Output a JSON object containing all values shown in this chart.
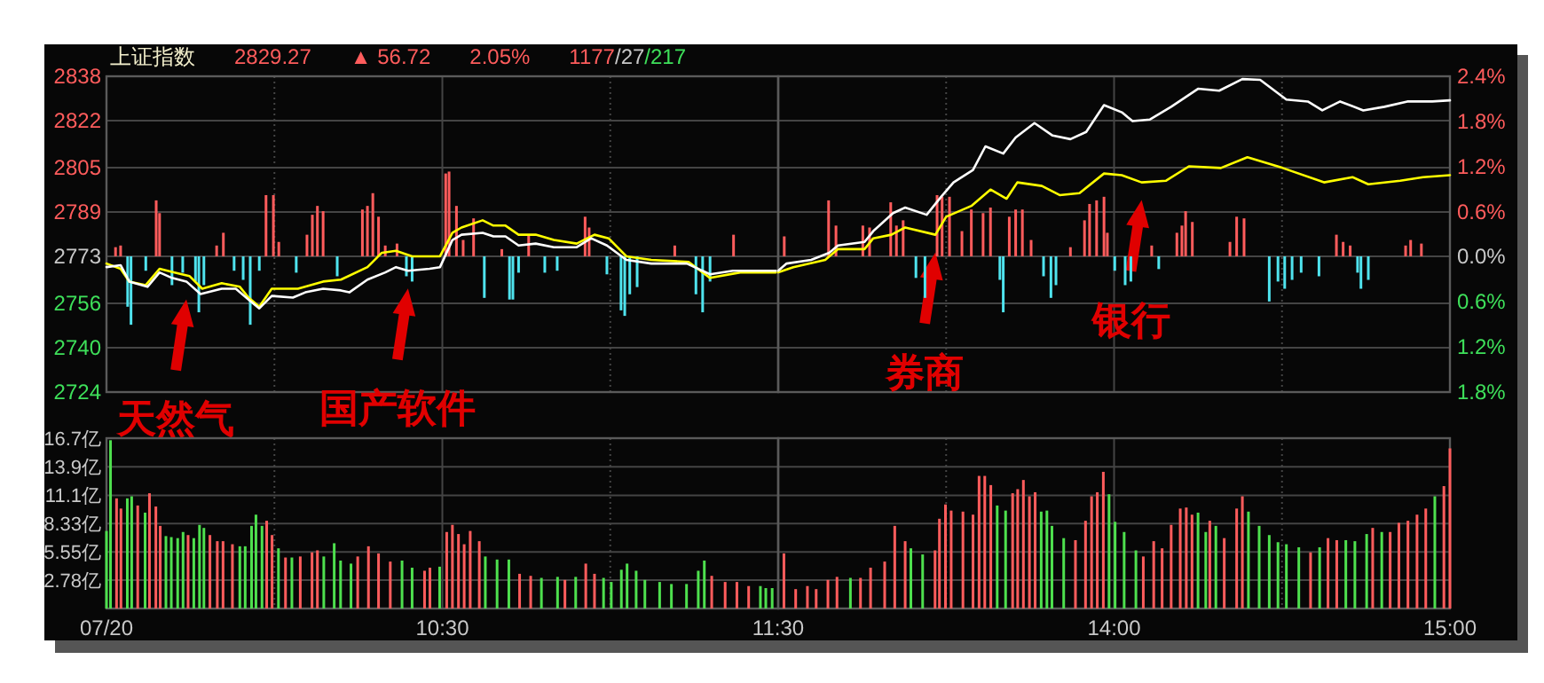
{
  "chart_data": [
    {
      "type": "line",
      "title": "上证指数",
      "annotations": [
        "2829.27",
        "▲ 56.72",
        "2.05%",
        "1177/27/217",
        {
          "text": "天然气",
          "x": 9.738,
          "y": 2763.9
        },
        {
          "text": "国产软件",
          "x": 10.398,
          "y": 2767.8
        }
      ],
      "xlim": [
        9.5,
        11.5
      ],
      "xticks": [
        9.5,
        {
          "value": 10,
          "label": null
        },
        10.5,
        {
          "value": 11,
          "label": null
        },
        11.5
      ],
      "ylim": [
        2724,
        2838
      ],
      "yticks": [
        2724,
        2740,
        2756,
        2773,
        2789,
        2805,
        2822,
        2838
      ],
      "grid": true,
      "tick_labels": "y",
      "series": [
        {
          "type": "bar",
          "x": [
            9.527,
            9.542,
            9.563,
            9.573,
            9.617,
            9.648,
            9.658,
            9.695,
            9.727,
            9.765,
            9.775,
            9.79,
            9.828,
            9.848,
            9.88,
            9.907,
            9.928,
            9.955,
            9.975,
            9.997,
            10.013,
            10.065,
            10.097,
            10.113,
            10.128,
            10.145,
            10.187,
            10.262,
            10.277,
            10.293,
            10.31,
            10.33,
            10.365,
            10.393,
            10.41,
            10.51,
            10.52,
            10.542,
            10.562,
            10.593,
            10.625,
            10.677,
            10.7,
            10.71,
            10.727,
            10.757,
            10.805,
            10.842,
            10.925,
            10.937,
            10.99,
            11.032,
            11.043,
            11.058,
            11.08,
            11.192,
            11.255,
            11.275,
            11.297,
            11.367
          ],
          "values": [
            3.3,
            3.9,
            -18.2,
            -24.7,
            -5.2,
            20.2,
            15.6,
            -10.4,
            -5.9,
            -9.1,
            -20.2,
            -10.4,
            3.9,
            8.5,
            -5.2,
            -8.5,
            -24.7,
            -5.2,
            22.1,
            22.1,
            5.2,
            -5.9,
            7.8,
            15.0,
            18.2,
            16.3,
            -7.2,
            16.9,
            18.2,
            22.8,
            14.3,
            3.9,
            4.6,
            -7.2,
            -9.1,
            29.9,
            30.6,
            18.2,
            5.9,
            13.7,
            -15.0,
            2.6,
            -15.6,
            -15.6,
            -5.9,
            7.8,
            -5.9,
            -5.2,
            14.3,
            10.4,
            -6.5,
            -19.5,
            -21.5,
            -13.7,
            -11.1,
            3.9,
            -13.7,
            -20.2,
            -9.1,
            7.8
          ],
          "base": [
            2773,
            2773,
            2773,
            2773,
            2773,
            2773,
            2773,
            2773,
            2773,
            2773,
            2773,
            2773,
            2773,
            2773,
            2773,
            2773,
            2773,
            2773,
            2773,
            2773,
            2773,
            2773,
            2773,
            2773,
            2773,
            2773,
            2773,
            2773,
            2773,
            2773,
            2773,
            2773,
            2773,
            2773,
            2773,
            2773,
            2773,
            2773,
            2773,
            2773,
            2773,
            2773,
            2773,
            2773,
            2773,
            2773,
            2773,
            2773,
            2773,
            2773,
            2773,
            2773,
            2773,
            2773,
            2773,
            2773,
            2773,
            2773,
            2773,
            2773
          ],
          "colors": [
            "#ff5c5c",
            "#ff5c5c",
            "#4fe3ee",
            "#4fe3ee",
            "#4fe3ee",
            "#ff5c5c",
            "#ff5c5c",
            "#4fe3ee",
            "#4fe3ee",
            "#4fe3ee",
            "#4fe3ee",
            "#4fe3ee",
            "#ff5c5c",
            "#ff5c5c",
            "#4fe3ee",
            "#4fe3ee",
            "#4fe3ee",
            "#4fe3ee",
            "#ff5c5c",
            "#ff5c5c",
            "#ff5c5c",
            "#4fe3ee",
            "#ff5c5c",
            "#ff5c5c",
            "#ff5c5c",
            "#ff5c5c",
            "#4fe3ee",
            "#ff5c5c",
            "#ff5c5c",
            "#ff5c5c",
            "#ff5c5c",
            "#ff5c5c",
            "#ff5c5c",
            "#4fe3ee",
            "#4fe3ee",
            "#ff5c5c",
            "#ff5c5c",
            "#ff5c5c",
            "#ff5c5c",
            "#ff5c5c",
            "#4fe3ee",
            "#ff5c5c",
            "#4fe3ee",
            "#4fe3ee",
            "#4fe3ee",
            "#ff5c5c",
            "#4fe3ee",
            "#4fe3ee",
            "#ff5c5c",
            "#ff5c5c",
            "#4fe3ee",
            "#4fe3ee",
            "#4fe3ee",
            "#4fe3ee",
            "#4fe3ee",
            "#ff5c5c",
            "#4fe3ee",
            "#4fe3ee",
            "#4fe3ee",
            "#ff5c5c"
          ]
        },
        {
          "color": "#ffff00",
          "x": [
            9.5,
            9.542,
            9.568,
            9.617,
            9.658,
            9.7,
            9.747,
            9.785,
            9.843,
            9.897,
            9.923,
            9.955,
            9.992,
            10.07,
            10.145,
            10.198,
            10.277,
            10.32,
            10.362,
            10.41,
            10.493,
            10.53,
            10.557,
            10.62,
            10.652,
            10.688,
            10.727,
            10.778,
            10.832,
            10.9,
            10.953,
            10.995,
            11.048,
            11.122,
            11.233,
            11.297,
            11.387,
            11.493
          ],
          "values": [
            2770.4,
            2768.5,
            2763.9,
            2762.6,
            2768.5,
            2767.2,
            2765.9,
            2761.3,
            2763.3,
            2762.0,
            2758.1,
            2754.8,
            2761.3,
            2761.3,
            2763.9,
            2764.6,
            2769.1,
            2774.3,
            2775.0,
            2773.0,
            2773.0,
            2781.5,
            2783.4,
            2786.0,
            2784.1,
            2784.1,
            2780.8,
            2780.8,
            2778.9,
            2777.6,
            2780.8,
            2779.5,
            2773.0,
            2771.7,
            2771.0,
            2765.2,
            2767.2,
            2767.2
          ]
        },
        {
          "color": "#ffffff",
          "x": [
            9.5,
            9.542,
            9.568,
            9.622,
            9.658,
            9.695,
            9.738,
            9.78,
            9.843,
            9.885,
            9.923,
            9.955,
            9.992,
            10.055,
            10.092,
            10.145,
            10.198,
            10.223,
            10.277,
            10.33,
            10.362,
            10.398,
            10.462,
            10.493,
            10.53,
            10.557,
            10.62,
            10.652,
            10.688,
            10.727,
            10.778,
            10.832,
            10.9,
            10.943,
            10.99,
            11.048,
            11.122,
            11.228,
            11.297,
            11.365,
            11.493
          ],
          "values": [
            2769.1,
            2769.8,
            2763.9,
            2762.0,
            2767.2,
            2765.2,
            2763.9,
            2759.4,
            2761.3,
            2761.3,
            2757.4,
            2754.2,
            2758.7,
            2758.1,
            2760.0,
            2761.3,
            2760.7,
            2760.0,
            2764.6,
            2767.2,
            2769.1,
            2767.8,
            2768.5,
            2769.1,
            2778.9,
            2780.8,
            2781.5,
            2780.2,
            2780.2,
            2776.9,
            2777.6,
            2776.3,
            2776.3,
            2779.5,
            2776.9,
            2771.7,
            2770.4,
            2770.4,
            2766.5,
            2767.8,
            2767.8
          ]
        }
      ]
    },
    {
      "type": "line",
      "annotations": [
        {
          "text": "券商",
          "x": 13.468,
          "y": 2780.8
        },
        {
          "text": "银行",
          "x": 14.082,
          "y": 2799.7
        }
      ],
      "xlim": [
        13,
        15
      ],
      "xticks": [
        13,
        {
          "value": 13.5,
          "label": null
        },
        14,
        {
          "value": 14.5,
          "label": null
        },
        15
      ],
      "ylim": [
        2724,
        2838
      ],
      "yticks": [
        2724,
        2740,
        2756,
        2773,
        2789,
        2805,
        2822,
        2838
      ],
      "y2lim": [
        -1.8,
        2.4
      ],
      "y2ticks": [
        {
          "value": -1.8,
          "label": "1.8%"
        },
        {
          "value": -1.2,
          "label": "1.2%"
        },
        {
          "value": -0.6,
          "label": "0.6%"
        },
        {
          "value": 0,
          "label": "0.0%"
        },
        {
          "value": 0.6,
          "label": "0.6%"
        },
        {
          "value": 1.2,
          "label": "1.2%"
        },
        {
          "value": 1.8,
          "label": "1.8%"
        },
        {
          "value": 2.4,
          "label": "2.4%"
        }
      ],
      "grid": true,
      "tick_labels": false,
      "series": [
        {
          "type": "bar",
          "x": [
            13.018,
            13.15,
            13.172,
            13.252,
            13.272,
            13.335,
            13.352,
            13.372,
            13.41,
            13.437,
            13.473,
            13.488,
            13.51,
            13.547,
            13.575,
            13.61,
            13.632,
            13.66,
            13.67,
            13.688,
            13.707,
            13.727,
            13.753,
            13.79,
            13.812,
            13.827,
            13.87,
            13.912,
            13.927,
            13.948,
            13.97,
            13.98,
            14.002,
            14.033,
            14.05,
            14.112,
            14.133,
            14.187,
            14.202,
            14.213,
            14.233,
            14.345,
            14.365,
            14.387,
            14.462,
            14.488,
            14.508,
            14.53,
            14.557,
            14.61,
            14.662,
            14.682,
            14.703,
            14.725,
            14.735,
            14.757,
            14.868,
            14.883,
            14.915
          ],
          "values": [
            7.2,
            20.2,
            11.1,
            11.1,
            10.4,
            19.5,
            11.1,
            13.0,
            -7.8,
            -15.0,
            22.1,
            21.5,
            21.5,
            9.1,
            16.9,
            15.6,
            17.6,
            -8.5,
            -20.2,
            14.3,
            16.9,
            16.9,
            5.9,
            -7.2,
            -15.0,
            -10.4,
            3.3,
            13.0,
            18.9,
            20.2,
            21.5,
            8.5,
            -5.2,
            -10.4,
            -9.1,
            3.9,
            -4.6,
            8.5,
            11.1,
            16.3,
            12.4,
            5.2,
            14.3,
            13.7,
            -16.3,
            -9.1,
            -11.7,
            -8.5,
            -5.9,
            -7.2,
            7.8,
            5.2,
            3.9,
            -5.9,
            -11.7,
            -8.5,
            3.9,
            5.9,
            4.6
          ],
          "base": [
            2773,
            2773,
            2773,
            2773,
            2773,
            2773,
            2773,
            2773,
            2773,
            2773,
            2773,
            2773,
            2773,
            2773,
            2773,
            2773,
            2773,
            2773,
            2773,
            2773,
            2773,
            2773,
            2773,
            2773,
            2773,
            2773,
            2773,
            2773,
            2773,
            2773,
            2773,
            2773,
            2773,
            2773,
            2773,
            2773,
            2773,
            2773,
            2773,
            2773,
            2773,
            2773,
            2773,
            2773,
            2773,
            2773,
            2773,
            2773,
            2773,
            2773,
            2773,
            2773,
            2773,
            2773,
            2773,
            2773,
            2773,
            2773,
            2773
          ],
          "colors": [
            "#ff5c5c",
            "#ff5c5c",
            "#ff5c5c",
            "#ff5c5c",
            "#ff5c5c",
            "#ff5c5c",
            "#ff5c5c",
            "#ff5c5c",
            "#4fe3ee",
            "#4fe3ee",
            "#ff5c5c",
            "#ff5c5c",
            "#ff5c5c",
            "#ff5c5c",
            "#ff5c5c",
            "#ff5c5c",
            "#ff5c5c",
            "#4fe3ee",
            "#4fe3ee",
            "#ff5c5c",
            "#ff5c5c",
            "#ff5c5c",
            "#ff5c5c",
            "#4fe3ee",
            "#4fe3ee",
            "#4fe3ee",
            "#ff5c5c",
            "#ff5c5c",
            "#ff5c5c",
            "#ff5c5c",
            "#ff5c5c",
            "#ff5c5c",
            "#4fe3ee",
            "#4fe3ee",
            "#4fe3ee",
            "#ff5c5c",
            "#4fe3ee",
            "#ff5c5c",
            "#ff5c5c",
            "#ff5c5c",
            "#ff5c5c",
            "#ff5c5c",
            "#ff5c5c",
            "#ff5c5c",
            "#4fe3ee",
            "#4fe3ee",
            "#4fe3ee",
            "#4fe3ee",
            "#4fe3ee",
            "#4fe3ee",
            "#ff5c5c",
            "#ff5c5c",
            "#ff5c5c",
            "#4fe3ee",
            "#4fe3ee",
            "#4fe3ee",
            "#ff5c5c",
            "#ff5c5c",
            "#ff5c5c"
          ]
        },
        {
          "color": "#ffff00",
          "x": [
            13,
            13.045,
            13.14,
            13.178,
            13.257,
            13.283,
            13.337,
            13.378,
            13.468,
            13.5,
            13.575,
            13.632,
            13.68,
            13.712,
            13.785,
            13.838,
            13.897,
            13.97,
            14.023,
            14.082,
            14.155,
            14.223,
            14.318,
            14.397,
            14.502,
            14.625,
            14.71,
            14.757,
            14.852,
            14.92,
            15
          ],
          "values": [
            2767.2,
            2769.1,
            2771.7,
            2775.6,
            2775.6,
            2779.5,
            2780.8,
            2783.4,
            2780.8,
            2787.3,
            2791.2,
            2797.1,
            2793.8,
            2799.7,
            2798.4,
            2795.1,
            2795.8,
            2802.9,
            2802.3,
            2799.7,
            2800.3,
            2805.5,
            2804.9,
            2808.8,
            2804.9,
            2799.7,
            2801.6,
            2799.0,
            2800.3,
            2801.6,
            2802.3
          ]
        },
        {
          "color": "#ffffff",
          "x": [
            13,
            13.025,
            13.098,
            13.152,
            13.178,
            13.257,
            13.283,
            13.342,
            13.378,
            13.442,
            13.485,
            13.522,
            13.58,
            13.617,
            13.67,
            13.707,
            13.763,
            13.817,
            13.87,
            13.917,
            13.97,
            14.023,
            14.055,
            14.107,
            14.17,
            14.25,
            14.313,
            14.382,
            14.435,
            14.513,
            14.577,
            14.62,
            14.673,
            14.742,
            14.805,
            14.873,
            14.947,
            15
          ],
          "values": [
            2767.8,
            2770.4,
            2771.7,
            2774.3,
            2776.9,
            2778.2,
            2782.1,
            2788.6,
            2790.6,
            2788.0,
            2794.5,
            2799.7,
            2804.2,
            2812.7,
            2810.1,
            2815.9,
            2821.1,
            2816.6,
            2815.3,
            2817.9,
            2827.6,
            2825.0,
            2821.8,
            2822.4,
            2827.0,
            2833.5,
            2832.8,
            2837.0,
            2836.7,
            2829.6,
            2828.9,
            2825.7,
            2828.9,
            2825.7,
            2827.0,
            2828.9,
            2828.9,
            2829.3
          ]
        }
      ]
    },
    {
      "type": "bar",
      "xlim": [
        9.5,
        11.5
      ],
      "xticks": [
        {
          "value": 9.5,
          "label": "07/20"
        },
        {
          "value": 10,
          "label": null
        },
        {
          "value": 10.5,
          "label": "10:30"
        },
        {
          "value": 11,
          "label": null
        },
        {
          "value": 11.5,
          "label": "11:30"
        }
      ],
      "ylim": [
        0,
        16.7
      ],
      "yticks": [
        {
          "value": 2.78,
          "label": "2.78亿"
        },
        {
          "value": 5.55,
          "label": "5.55亿"
        },
        {
          "value": 8.33,
          "label": "8.33亿"
        },
        {
          "value": 11.1,
          "label": "11.1亿"
        },
        {
          "value": 13.9,
          "label": "13.9亿"
        },
        {
          "value": 16.7,
          "label": "16.7亿"
        }
      ],
      "grid": true,
      "x": [
        9.5,
        9.512,
        9.53,
        9.543,
        9.562,
        9.575,
        9.593,
        9.615,
        9.628,
        9.647,
        9.66,
        9.677,
        9.693,
        9.712,
        9.728,
        9.743,
        9.76,
        9.777,
        9.79,
        9.808,
        9.83,
        9.847,
        9.875,
        9.897,
        9.913,
        9.932,
        9.945,
        9.963,
        9.977,
        9.993,
        10.012,
        10.033,
        10.052,
        10.077,
        10.112,
        10.128,
        10.147,
        10.178,
        10.197,
        10.228,
        10.248,
        10.28,
        10.31,
        10.345,
        10.38,
        10.41,
        10.447,
        10.463,
        10.492,
        10.513,
        10.53,
        10.548,
        10.565,
        10.583,
        10.61,
        10.628,
        10.663,
        10.698,
        10.73,
        10.763,
        10.795,
        10.843,
        10.865,
        10.897,
        10.927,
        10.953,
        10.98,
        11.003,
        11.033,
        11.05,
        11.077,
        11.103,
        11.147,
        11.182,
        11.227,
        11.262,
        11.28,
        11.302,
        11.342,
        11.377,
        11.412,
        11.447,
        11.463,
        11.482
      ],
      "values": [
        7.6,
        16.5,
        10.8,
        9.8,
        10.8,
        11.0,
        10.1,
        9.4,
        11.3,
        10.0,
        8.1,
        7.1,
        7.0,
        6.9,
        7.5,
        7.2,
        6.9,
        8.2,
        7.9,
        7.2,
        6.6,
        6.6,
        6.3,
        6.1,
        6.1,
        8.1,
        9.2,
        8.1,
        8.6,
        7.2,
        5.9,
        5.0,
        5.0,
        5.1,
        5.5,
        5.7,
        5.1,
        6.4,
        4.7,
        4.4,
        5.1,
        6.1,
        5.4,
        4.6,
        4.7,
        4.0,
        3.7,
        4.0,
        4.1,
        7.5,
        8.2,
        7.3,
        6.3,
        7.6,
        6.6,
        5.1,
        4.8,
        4.8,
        3.4,
        3.2,
        3.0,
        3.1,
        2.8,
        3.1,
        4.4,
        3.4,
        3.0,
        2.6,
        3.8,
        4.4,
        3.7,
        2.8,
        2.6,
        2.4,
        2.4,
        3.7,
        4.7,
        3.2,
        2.6,
        2.6,
        2.2,
        2.2,
        2.0,
        2.0
      ],
      "colors": [
        "#4ee04e",
        "#4ee04e",
        "#ff5c5c",
        "#ff5c5c",
        "#4ee04e",
        "#4ee04e",
        "#ff5c5c",
        "#4ee04e",
        "#ff5c5c",
        "#ff5c5c",
        "#ff5c5c",
        "#4ee04e",
        "#4ee04e",
        "#4ee04e",
        "#4ee04e",
        "#ff5c5c",
        "#4ee04e",
        "#4ee04e",
        "#4ee04e",
        "#ff5c5c",
        "#ff5c5c",
        "#ff5c5c",
        "#ff5c5c",
        "#4ee04e",
        "#4ee04e",
        "#4ee04e",
        "#4ee04e",
        "#4ee04e",
        "#ff5c5c",
        "#ff5c5c",
        "#4ee04e",
        "#ff5c5c",
        "#4ee04e",
        "#ff5c5c",
        "#ff5c5c",
        "#ff5c5c",
        "#4ee04e",
        "#4ee04e",
        "#4ee04e",
        "#4ee04e",
        "#ff5c5c",
        "#ff5c5c",
        "#ff5c5c",
        "#ff5c5c",
        "#4ee04e",
        "#4ee04e",
        "#ff5c5c",
        "#ff5c5c",
        "#4ee04e",
        "#ff5c5c",
        "#ff5c5c",
        "#ff5c5c",
        "#ff5c5c",
        "#ff5c5c",
        "#ff5c5c",
        "#4ee04e",
        "#4ee04e",
        "#4ee04e",
        "#ff5c5c",
        "#ff5c5c",
        "#4ee04e",
        "#4ee04e",
        "#ff5c5c",
        "#4ee04e",
        "#ff5c5c",
        "#ff5c5c",
        "#4ee04e",
        "#4ee04e",
        "#4ee04e",
        "#4ee04e",
        "#4ee04e",
        "#4ee04e",
        "#4ee04e",
        "#4ee04e",
        "#4ee04e",
        "#4ee04e",
        "#4ee04e",
        "#ff5c5c",
        "#ff5c5c",
        "#ff5c5c",
        "#ff5c5c",
        "#4ee04e",
        "#4ee04e",
        "#4ee04e"
      ]
    },
    {
      "type": "bar",
      "xlim": [
        13,
        15
      ],
      "xticks": [
        {
          "value": 13,
          "label": null
        },
        {
          "value": 13.5,
          "label": null
        },
        {
          "value": 14,
          "label": "14:00"
        },
        {
          "value": 14.5,
          "label": null
        },
        {
          "value": 15,
          "label": "15:00"
        }
      ],
      "ylim": [
        0,
        16.7
      ],
      "yticks": [
        2.78,
        5.55,
        8.33,
        11.1,
        13.9,
        16.7
      ],
      "grid": true,
      "tick_labels": "x",
      "x": [
        13.017,
        13.052,
        13.087,
        13.113,
        13.148,
        13.175,
        13.215,
        13.245,
        13.275,
        13.317,
        13.347,
        13.378,
        13.395,
        13.43,
        13.467,
        13.48,
        13.498,
        13.515,
        13.55,
        13.58,
        13.598,
        13.615,
        13.633,
        13.652,
        13.677,
        13.698,
        13.713,
        13.73,
        13.748,
        13.765,
        13.783,
        13.8,
        13.815,
        13.85,
        13.885,
        13.915,
        13.933,
        13.95,
        13.968,
        13.985,
        14.003,
        14.03,
        14.065,
        14.087,
        14.118,
        14.143,
        14.17,
        14.197,
        14.215,
        14.232,
        14.25,
        14.273,
        14.285,
        14.303,
        14.328,
        14.365,
        14.382,
        14.4,
        14.432,
        14.462,
        14.488,
        14.513,
        14.55,
        14.585,
        14.612,
        14.637,
        14.663,
        14.69,
        14.717,
        14.752,
        14.77,
        14.797,
        14.822,
        14.848,
        14.875,
        14.902,
        14.928,
        14.955,
        14.982,
        15
      ],
      "values": [
        5.4,
        1.9,
        2.2,
        1.9,
        2.8,
        3.1,
        3.0,
        3.0,
        4.0,
        4.6,
        8.1,
        6.6,
        5.9,
        5.3,
        5.7,
        8.8,
        10.2,
        9.6,
        9.5,
        9.2,
        13.0,
        13.0,
        12.1,
        10.1,
        9.6,
        11.3,
        11.7,
        12.6,
        11.0,
        11.4,
        9.5,
        9.6,
        8.1,
        6.9,
        6.7,
        8.6,
        11.0,
        11.4,
        13.4,
        11.2,
        8.5,
        7.5,
        5.7,
        5.1,
        6.6,
        5.9,
        8.2,
        9.8,
        9.9,
        9.2,
        9.4,
        7.5,
        8.6,
        8.1,
        6.9,
        9.8,
        11.0,
        9.5,
        8.1,
        7.2,
        6.5,
        6.3,
        6.0,
        5.5,
        6.0,
        6.9,
        6.7,
        6.7,
        6.6,
        7.3,
        7.9,
        7.5,
        7.5,
        8.4,
        8.6,
        9.2,
        9.8,
        11.0,
        12.0,
        15.7
      ],
      "colors": [
        "#ff5c5c",
        "#ff5c5c",
        "#ff5c5c",
        "#ff5c5c",
        "#ff5c5c",
        "#ff5c5c",
        "#4ee04e",
        "#ff5c5c",
        "#ff5c5c",
        "#ff5c5c",
        "#ff5c5c",
        "#ff5c5c",
        "#4ee04e",
        "#4ee04e",
        "#ff5c5c",
        "#ff5c5c",
        "#ff5c5c",
        "#ff5c5c",
        "#ff5c5c",
        "#ff5c5c",
        "#ff5c5c",
        "#ff5c5c",
        "#ff5c5c",
        "#4ee04e",
        "#4ee04e",
        "#ff5c5c",
        "#ff5c5c",
        "#ff5c5c",
        "#ff5c5c",
        "#ff5c5c",
        "#4ee04e",
        "#4ee04e",
        "#4ee04e",
        "#4ee04e",
        "#ff5c5c",
        "#ff5c5c",
        "#ff5c5c",
        "#ff5c5c",
        "#ff5c5c",
        "#4ee04e",
        "#4ee04e",
        "#4ee04e",
        "#4ee04e",
        "#ff5c5c",
        "#ff5c5c",
        "#ff5c5c",
        "#ff5c5c",
        "#ff5c5c",
        "#ff5c5c",
        "#ff5c5c",
        "#4ee04e",
        "#4ee04e",
        "#ff5c5c",
        "#4ee04e",
        "#ff5c5c",
        "#ff5c5c",
        "#ff5c5c",
        "#4ee04e",
        "#4ee04e",
        "#4ee04e",
        "#4ee04e",
        "#4ee04e",
        "#4ee04e",
        "#ff5c5c",
        "#4ee04e",
        "#ff5c5c",
        "#ff5c5c",
        "#4ee04e",
        "#4ee04e",
        "#4ee04e",
        "#ff5c5c",
        "#4ee04e",
        "#ff5c5c",
        "#ff5c5c",
        "#ff5c5c",
        "#ff5c5c",
        "#ff5c5c",
        "#4ee04e",
        "#ff5c5c",
        "#ff5c5c"
      ]
    }
  ]
}
